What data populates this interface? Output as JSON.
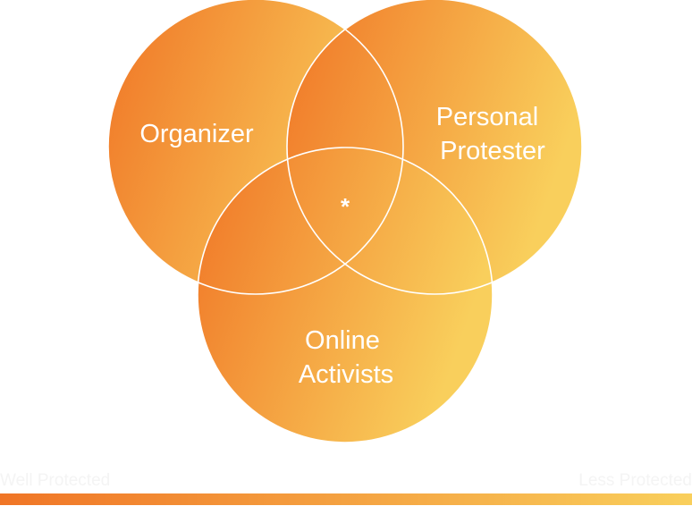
{
  "diagram": {
    "type": "venn-3",
    "colors": {
      "gradient_start": "#f07526",
      "gradient_end": "#f9cf5c",
      "outline": "#ffffff"
    },
    "circles": [
      {
        "id": "organizer",
        "lines": [
          "Organizer"
        ]
      },
      {
        "id": "personal-protester",
        "lines": [
          "Personal",
          "Protester"
        ]
      },
      {
        "id": "online-activists",
        "lines": [
          "Online",
          "Activists"
        ]
      }
    ],
    "center_mark": "*"
  },
  "scale": {
    "left_label": "Well Protected",
    "right_label": "Less Protected"
  }
}
